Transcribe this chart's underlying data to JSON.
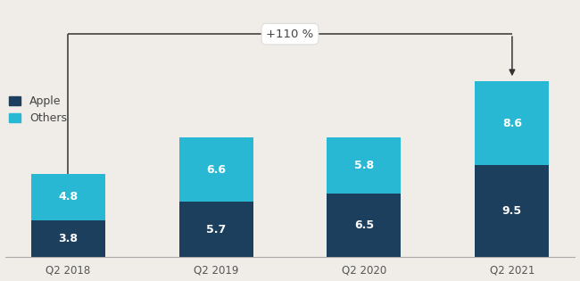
{
  "categories": [
    "Q2 2018",
    "Q2 2019",
    "Q2 2020",
    "Q2 2021"
  ],
  "apple_values": [
    3.8,
    5.7,
    6.5,
    9.5
  ],
  "others_values": [
    4.8,
    6.6,
    5.8,
    8.6
  ],
  "apple_color": "#1c3f5e",
  "others_color": "#29b8d4",
  "background_color": "#f0ede8",
  "bar_label_color": "#ffffff",
  "annotation_text": "+110 %",
  "legend_labels": [
    "Apple",
    "Others"
  ],
  "bar_width": 0.5,
  "ylim": [
    0,
    26
  ],
  "fontsize_labels": 9,
  "fontsize_ticks": 8.5,
  "fontsize_annotation": 9.5,
  "line_color": "#333333",
  "tick_color": "#555555"
}
